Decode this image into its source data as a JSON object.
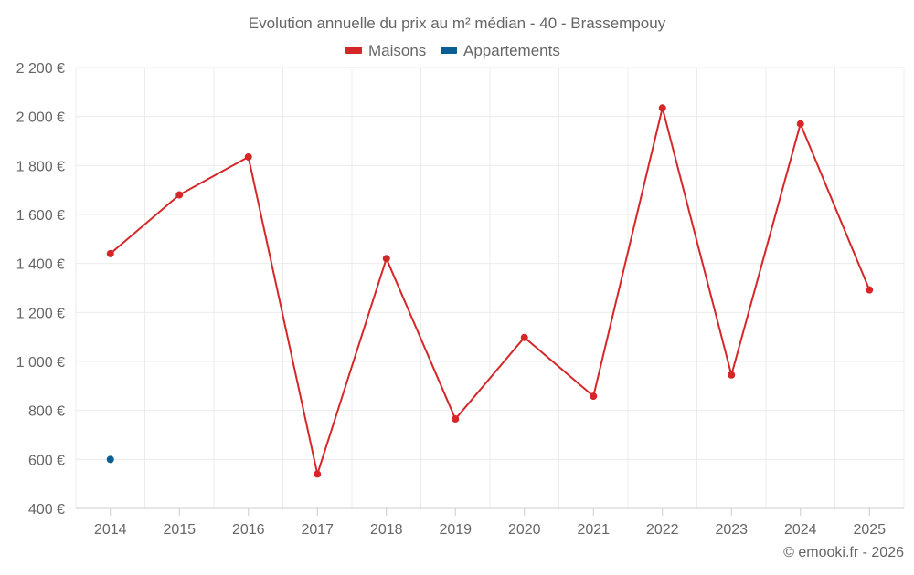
{
  "chart_data": {
    "type": "line",
    "title": "Evolution annuelle du prix au m² médian - 40 - Brassempouy",
    "xlabel": "",
    "ylabel": "",
    "categories": [
      "2014",
      "2015",
      "2016",
      "2017",
      "2018",
      "2019",
      "2020",
      "2021",
      "2022",
      "2023",
      "2024",
      "2025"
    ],
    "ylim": [
      400,
      2200
    ],
    "y_ticks": [
      400,
      600,
      800,
      1000,
      1200,
      1400,
      1600,
      1800,
      2000,
      2200
    ],
    "y_tick_labels": [
      "400 €",
      "600 €",
      "800 €",
      "1 000 €",
      "1 200 €",
      "1 400 €",
      "1 600 €",
      "1 800 €",
      "2 000 €",
      "2 200 €"
    ],
    "grid": true,
    "legend_position": "top-center",
    "series": [
      {
        "name": "Maisons",
        "color": "#d62728",
        "values": [
          1440,
          1680,
          1835,
          540,
          1420,
          765,
          1098,
          858,
          2035,
          945,
          1970,
          1292
        ]
      },
      {
        "name": "Appartements",
        "color": "#0b5e94",
        "values": [
          600,
          null,
          null,
          null,
          null,
          null,
          null,
          null,
          null,
          null,
          null,
          null
        ]
      }
    ],
    "credit": "© emooki.fr - 2026"
  }
}
